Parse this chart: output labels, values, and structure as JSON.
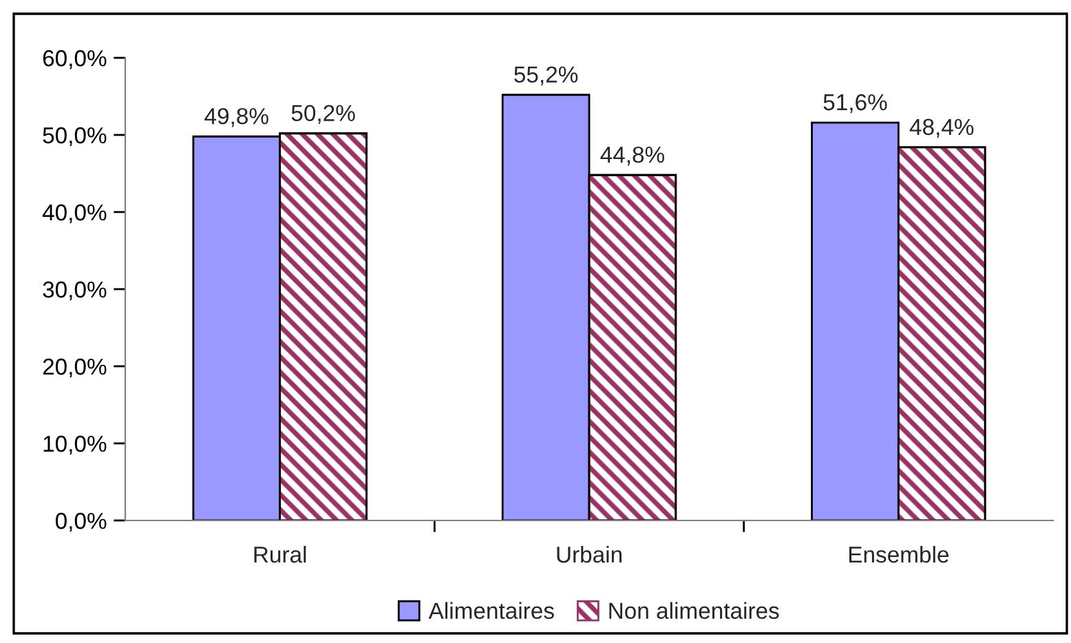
{
  "chart_data": {
    "type": "bar",
    "categories": [
      "Rural",
      "Urbain",
      "Ensemble"
    ],
    "series": [
      {
        "name": "Alimentaires",
        "color": "#9999ff",
        "values": [
          49.8,
          55.2,
          51.6
        ],
        "value_labels": [
          "49,8%",
          "55,2%",
          "51,6%"
        ]
      },
      {
        "name": "Non alimentaires",
        "color": "#993366",
        "values": [
          50.2,
          44.8,
          48.4
        ],
        "value_labels": [
          "50,2%",
          "44,8%",
          "48,4%"
        ]
      }
    ],
    "ylim": [
      0,
      60
    ],
    "yticks": [
      {
        "value": 0,
        "label": "0,0%"
      },
      {
        "value": 10,
        "label": "10,0%"
      },
      {
        "value": 20,
        "label": "20,0%"
      },
      {
        "value": 30,
        "label": "30,0%"
      },
      {
        "value": 40,
        "label": "40,0%"
      },
      {
        "value": 50,
        "label": "50,0%"
      },
      {
        "value": 60,
        "label": "60,0%"
      }
    ],
    "grid": false,
    "legend": "bottom"
  }
}
